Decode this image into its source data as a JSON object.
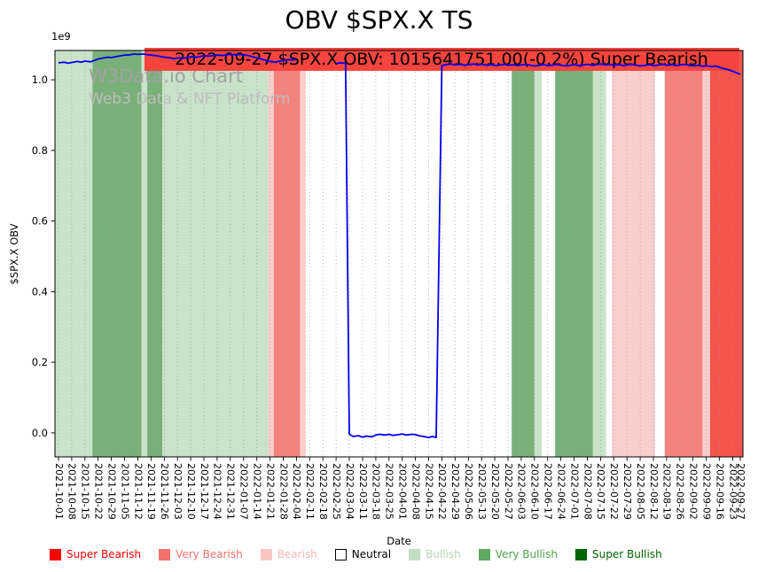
{
  "figure": {
    "watermark": {
      "line1": "W3Data.io Chart",
      "line2": "Web3 Data & NFT Platform",
      "color1": "#a3a3a3",
      "color2": "#bdbdbd"
    },
    "annotation": {
      "text": "2022-09-27 $SPX.X OBV: 1015641751.00(-0.2%) Super Bearish",
      "bg_color": "#f6443e",
      "text_color": "#000000"
    }
  },
  "chart_data": {
    "type": "line",
    "title": "OBV $SPX.X TS",
    "xlabel": "Date",
    "ylabel": "$SPX.X OBV",
    "y_offset_label": "1e9",
    "y_units": "values in 1e9",
    "ylim": [
      -0.068,
      1.083
    ],
    "yticks": [
      0.0,
      0.2,
      0.4,
      0.6,
      0.8,
      1.0
    ],
    "x_domain_days": [
      0,
      361
    ],
    "grid": "dotted-vertical",
    "legend_position": "bottom",
    "xticks": [
      {
        "d": 0,
        "label": "2021-10-01"
      },
      {
        "d": 7,
        "label": "2021-10-08"
      },
      {
        "d": 14,
        "label": "2021-10-15"
      },
      {
        "d": 21,
        "label": "2021-10-22"
      },
      {
        "d": 28,
        "label": "2021-10-29"
      },
      {
        "d": 35,
        "label": "2021-11-05"
      },
      {
        "d": 42,
        "label": "2021-11-12"
      },
      {
        "d": 49,
        "label": "2021-11-19"
      },
      {
        "d": 56,
        "label": "2021-11-26"
      },
      {
        "d": 63,
        "label": "2021-12-03"
      },
      {
        "d": 70,
        "label": "2021-12-10"
      },
      {
        "d": 77,
        "label": "2021-12-17"
      },
      {
        "d": 84,
        "label": "2021-12-24"
      },
      {
        "d": 91,
        "label": "2021-12-31"
      },
      {
        "d": 98,
        "label": "2022-01-07"
      },
      {
        "d": 105,
        "label": "2022-01-14"
      },
      {
        "d": 112,
        "label": "2022-01-21"
      },
      {
        "d": 119,
        "label": "2022-01-28"
      },
      {
        "d": 126,
        "label": "2022-02-04"
      },
      {
        "d": 133,
        "label": "2022-02-11"
      },
      {
        "d": 140,
        "label": "2022-02-18"
      },
      {
        "d": 147,
        "label": "2022-02-25"
      },
      {
        "d": 154,
        "label": "2022-03-04"
      },
      {
        "d": 161,
        "label": "2022-03-11"
      },
      {
        "d": 168,
        "label": "2022-03-18"
      },
      {
        "d": 175,
        "label": "2022-03-25"
      },
      {
        "d": 182,
        "label": "2022-04-01"
      },
      {
        "d": 189,
        "label": "2022-04-08"
      },
      {
        "d": 196,
        "label": "2022-04-15"
      },
      {
        "d": 203,
        "label": "2022-04-22"
      },
      {
        "d": 210,
        "label": "2022-04-29"
      },
      {
        "d": 217,
        "label": "2022-05-06"
      },
      {
        "d": 224,
        "label": "2022-05-13"
      },
      {
        "d": 231,
        "label": "2022-05-20"
      },
      {
        "d": 238,
        "label": "2022-05-27"
      },
      {
        "d": 245,
        "label": "2022-06-03"
      },
      {
        "d": 252,
        "label": "2022-06-10"
      },
      {
        "d": 259,
        "label": "2022-06-17"
      },
      {
        "d": 266,
        "label": "2022-06-24"
      },
      {
        "d": 273,
        "label": "2022-07-01"
      },
      {
        "d": 280,
        "label": "2022-07-08"
      },
      {
        "d": 287,
        "label": "2022-07-15"
      },
      {
        "d": 294,
        "label": "2022-07-22"
      },
      {
        "d": 301,
        "label": "2022-07-29"
      },
      {
        "d": 308,
        "label": "2022-08-05"
      },
      {
        "d": 315,
        "label": "2022-08-12"
      },
      {
        "d": 322,
        "label": "2022-08-19"
      },
      {
        "d": 329,
        "label": "2022-08-26"
      },
      {
        "d": 336,
        "label": "2022-09-02"
      },
      {
        "d": 343,
        "label": "2022-09-09"
      },
      {
        "d": 350,
        "label": "2022-09-16"
      },
      {
        "d": 357,
        "label": "2022-09-23"
      },
      {
        "d": 361,
        "label": "2022-09-27"
      }
    ],
    "band_colors": {
      "super_bearish": "#f4544c",
      "very_bearish": "#f4837d",
      "bearish": "#f9cfce",
      "neutral": "#ffffff",
      "bullish": "#c9e2c9",
      "very_bullish": "#79b079",
      "super_bullish": "#2e7d2e"
    },
    "sentiment_bands": [
      {
        "s": -2,
        "e": 18,
        "level": "bullish"
      },
      {
        "s": 18,
        "e": 44,
        "level": "very_bullish"
      },
      {
        "s": 44,
        "e": 47,
        "level": "bullish"
      },
      {
        "s": 47,
        "e": 55,
        "level": "very_bullish"
      },
      {
        "s": 55,
        "e": 111,
        "level": "bullish"
      },
      {
        "s": 111,
        "e": 114,
        "level": "bearish"
      },
      {
        "s": 114,
        "e": 128,
        "level": "very_bearish"
      },
      {
        "s": 128,
        "e": 131,
        "level": "bearish"
      },
      {
        "s": 131,
        "e": 240,
        "level": "neutral"
      },
      {
        "s": 240,
        "e": 252,
        "level": "very_bullish"
      },
      {
        "s": 252,
        "e": 256,
        "level": "bullish"
      },
      {
        "s": 256,
        "e": 263,
        "level": "neutral"
      },
      {
        "s": 263,
        "e": 283,
        "level": "very_bullish"
      },
      {
        "s": 283,
        "e": 290,
        "level": "bullish"
      },
      {
        "s": 290,
        "e": 293,
        "level": "neutral"
      },
      {
        "s": 293,
        "e": 316,
        "level": "bearish"
      },
      {
        "s": 316,
        "e": 321,
        "level": "neutral"
      },
      {
        "s": 321,
        "e": 341,
        "level": "very_bearish"
      },
      {
        "s": 341,
        "e": 345,
        "level": "bearish"
      },
      {
        "s": 345,
        "e": 363,
        "level": "super_bearish"
      }
    ],
    "series": [
      {
        "name": "OBV",
        "color": "#0000ee",
        "points": [
          [
            0,
            1.048
          ],
          [
            3,
            1.05
          ],
          [
            5,
            1.047
          ],
          [
            7,
            1.049
          ],
          [
            10,
            1.052
          ],
          [
            12,
            1.05
          ],
          [
            14,
            1.053
          ],
          [
            17,
            1.051
          ],
          [
            19,
            1.055
          ],
          [
            21,
            1.059
          ],
          [
            24,
            1.062
          ],
          [
            26,
            1.064
          ],
          [
            28,
            1.063
          ],
          [
            31,
            1.066
          ],
          [
            33,
            1.068
          ],
          [
            35,
            1.07
          ],
          [
            38,
            1.071
          ],
          [
            40,
            1.073
          ],
          [
            42,
            1.072
          ],
          [
            45,
            1.073
          ],
          [
            47,
            1.071
          ],
          [
            49,
            1.07
          ],
          [
            52,
            1.068
          ],
          [
            54,
            1.066
          ],
          [
            56,
            1.064
          ],
          [
            59,
            1.062
          ],
          [
            61,
            1.06
          ],
          [
            63,
            1.062
          ],
          [
            66,
            1.061
          ],
          [
            68,
            1.063
          ],
          [
            70,
            1.065
          ],
          [
            73,
            1.064
          ],
          [
            75,
            1.066
          ],
          [
            77,
            1.068
          ],
          [
            80,
            1.067
          ],
          [
            82,
            1.069
          ],
          [
            84,
            1.07
          ],
          [
            87,
            1.069
          ],
          [
            89,
            1.071
          ],
          [
            91,
            1.072
          ],
          [
            94,
            1.071
          ],
          [
            96,
            1.072
          ],
          [
            98,
            1.071
          ],
          [
            101,
            1.068
          ],
          [
            103,
            1.065
          ],
          [
            105,
            1.062
          ],
          [
            108,
            1.058
          ],
          [
            110,
            1.055
          ],
          [
            112,
            1.052
          ],
          [
            115,
            1.05
          ],
          [
            117,
            1.053
          ],
          [
            119,
            1.055
          ],
          [
            122,
            1.057
          ],
          [
            124,
            1.056
          ],
          [
            126,
            1.058
          ],
          null,
          [
            147,
            1.046
          ],
          [
            149,
            1.048
          ],
          [
            152,
            1.047
          ],
          [
            154,
            -0.004
          ],
          [
            156,
            -0.01
          ],
          [
            159,
            -0.008
          ],
          [
            161,
            -0.012
          ],
          [
            163,
            -0.009
          ],
          [
            166,
            -0.011
          ],
          [
            168,
            -0.006
          ],
          [
            170,
            -0.004
          ],
          [
            173,
            -0.006
          ],
          [
            175,
            -0.004
          ],
          [
            177,
            -0.007
          ],
          [
            180,
            -0.005
          ],
          [
            182,
            -0.003
          ],
          [
            184,
            -0.006
          ],
          [
            187,
            -0.004
          ],
          [
            189,
            -0.005
          ],
          [
            191,
            -0.008
          ],
          [
            194,
            -0.011
          ],
          [
            196,
            -0.013
          ],
          [
            198,
            -0.01
          ],
          [
            200,
            -0.013
          ],
          [
            203,
            1.04
          ],
          [
            205,
            1.043
          ],
          [
            208,
            1.045
          ],
          [
            210,
            1.042
          ],
          [
            213,
            1.044
          ],
          [
            215,
            1.041
          ],
          [
            217,
            1.043
          ],
          [
            220,
            1.045
          ],
          [
            222,
            1.042
          ],
          [
            224,
            1.044
          ],
          [
            227,
            1.041
          ],
          [
            229,
            1.043
          ],
          [
            231,
            1.04
          ],
          [
            234,
            1.042
          ],
          [
            236,
            1.044
          ],
          [
            238,
            1.041
          ],
          [
            241,
            1.043
          ],
          [
            243,
            1.04
          ],
          [
            245,
            1.042
          ],
          [
            248,
            1.044
          ],
          [
            250,
            1.041
          ],
          [
            252,
            1.039
          ],
          [
            255,
            1.041
          ],
          [
            257,
            1.043
          ],
          [
            259,
            1.04
          ],
          [
            262,
            1.042
          ],
          [
            264,
            1.044
          ],
          [
            266,
            1.041
          ],
          [
            269,
            1.039
          ],
          [
            271,
            1.041
          ],
          [
            273,
            1.043
          ],
          [
            276,
            1.04
          ],
          [
            278,
            1.042
          ],
          [
            280,
            1.044
          ],
          [
            283,
            1.041
          ],
          [
            285,
            1.043
          ],
          [
            287,
            1.045
          ],
          [
            290,
            1.042
          ],
          [
            292,
            1.044
          ],
          [
            294,
            1.041
          ],
          [
            297,
            1.043
          ],
          [
            299,
            1.04
          ],
          [
            301,
            1.042
          ],
          [
            304,
            1.044
          ],
          [
            306,
            1.041
          ],
          [
            308,
            1.039
          ],
          [
            311,
            1.041
          ],
          [
            313,
            1.043
          ],
          [
            315,
            1.04
          ],
          [
            318,
            1.042
          ],
          [
            320,
            1.044
          ],
          [
            322,
            1.041
          ],
          [
            325,
            1.043
          ],
          [
            327,
            1.04
          ],
          [
            329,
            1.042
          ],
          [
            332,
            1.044
          ],
          [
            334,
            1.041
          ],
          [
            336,
            1.039
          ],
          [
            339,
            1.041
          ],
          [
            341,
            1.038
          ],
          [
            343,
            1.04
          ],
          [
            346,
            1.037
          ],
          [
            348,
            1.039
          ],
          [
            350,
            1.035
          ],
          [
            352,
            1.032
          ],
          [
            355,
            1.028
          ],
          [
            357,
            1.024
          ],
          [
            359,
            1.02
          ],
          [
            361,
            1.0156
          ]
        ]
      }
    ],
    "legend": [
      {
        "label": "Super Bearish",
        "swatch": "#ff0000",
        "text": "#ff0000",
        "edge": false
      },
      {
        "label": "Very Bearish",
        "swatch": "#f4726c",
        "text": "#f4726c",
        "edge": false
      },
      {
        "label": "Bearish",
        "swatch": "#f9c6c4",
        "text": "#f4b8b6",
        "edge": false
      },
      {
        "label": "Neutral",
        "swatch": "#ffffff",
        "text": "#000000",
        "edge": true
      },
      {
        "label": "Bullish",
        "swatch": "#c3dfc3",
        "text": "#b7d6b7",
        "edge": false
      },
      {
        "label": "Very Bullish",
        "swatch": "#5fa95f",
        "text": "#4f9f4f",
        "edge": false
      },
      {
        "label": "Super Bullish",
        "swatch": "#006400",
        "text": "#006400",
        "edge": false
      }
    ]
  }
}
